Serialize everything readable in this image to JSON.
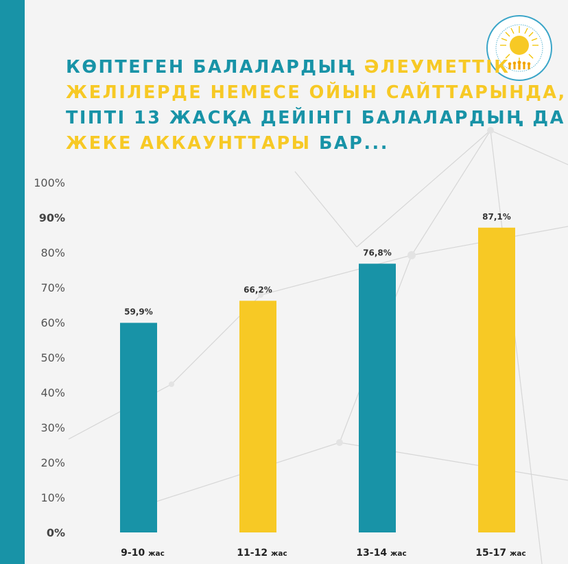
{
  "headline": {
    "line1_a": "КӨПТЕГЕН БАЛАЛАРДЫҢ ",
    "line1_b": "ӘЛЕУМЕТТІК",
    "line2": "ЖЕЛІЛЕРДЕ НЕМЕСЕ ОЙЫН САЙТТАРЫНДА,",
    "line3": "ТІПТІ 13 ЖАСҚА ДЕЙІНГІ БАЛАЛАРДЫҢ ДА",
    "line4_a": "ЖЕКЕ АККАУНТТАРЫ",
    "line4_b": " БАР..."
  },
  "colors": {
    "teal": "#1893a7",
    "yellow": "#f7c925"
  },
  "logo": {
    "icon": "sun-emblem-seal-icon"
  },
  "chart_data": {
    "type": "bar",
    "categories": [
      "9-10",
      "11-12",
      "13-14",
      "15-17"
    ],
    "category_unit": "жас",
    "values": [
      59.9,
      66.2,
      76.8,
      87.1
    ],
    "value_labels": [
      "59,9%",
      "66,2%",
      "76,8%",
      "87,1%"
    ],
    "bar_colors": [
      "#1893a7",
      "#f7c925",
      "#1893a7",
      "#f7c925"
    ],
    "ylim": [
      0,
      100
    ],
    "yticks": [
      "0%",
      "10%",
      "20%",
      "30%",
      "40%",
      "50%",
      "60%",
      "70%",
      "80%",
      "90%",
      "100%"
    ],
    "grid": false,
    "xlabel": "",
    "ylabel": ""
  }
}
